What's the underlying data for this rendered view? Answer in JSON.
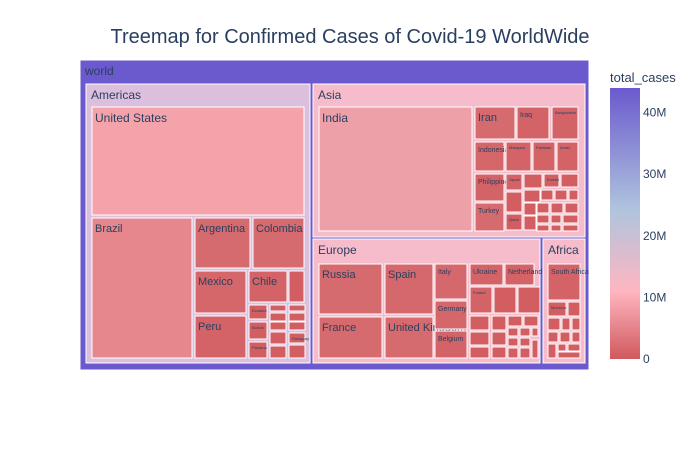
{
  "chart_data": {
    "type": "treemap",
    "title": "Treemap for Confirmed Cases of Covid-19 WorldWide",
    "root": "world",
    "colorbar": {
      "title": "total_cases",
      "ticks": [
        "0",
        "10M",
        "20M",
        "30M",
        "40M"
      ],
      "tick_values": [
        0,
        10,
        20,
        30,
        40
      ],
      "range": [
        0,
        44
      ],
      "colors": [
        "#d0595d",
        "#ffb6c1",
        "#b0c4de",
        "#6a5acd"
      ]
    },
    "root_color": "#6a5acd",
    "children": [
      {
        "name": "Americas",
        "color": "#dcbfdd",
        "children": [
          {
            "name": "United States",
            "value": 44,
            "color": "#f4a3ab"
          },
          {
            "name": "Brazil",
            "value": 21,
            "color": "#e5878c"
          },
          {
            "name": "Argentina",
            "value": 5.3,
            "color": "#d66b6f"
          },
          {
            "name": "Colombia",
            "value": 5.0,
            "color": "#d66b6f"
          },
          {
            "name": "Mexico",
            "value": 3.7,
            "color": "#d5666a"
          },
          {
            "name": "Chile",
            "value": 1.7,
            "color": "#d46367"
          },
          {
            "name": "Peru",
            "value": 2.2,
            "color": "#d46367"
          },
          {
            "name": "Ecuador",
            "value": 0.5,
            "color": "#d25e62"
          },
          {
            "name": "Bolivia",
            "value": 0.5,
            "color": "#d25e62"
          },
          {
            "name": "Panama",
            "value": 0.5,
            "color": "#d25e62"
          },
          {
            "name": "Paraguay",
            "value": 0.45,
            "color": "#d25e62"
          }
        ]
      },
      {
        "name": "Asia",
        "color": "#f6bccb",
        "children": [
          {
            "name": "India",
            "value": 34,
            "color": "#eea0a8"
          },
          {
            "name": "Iran",
            "value": 5.7,
            "color": "#d66b6f"
          },
          {
            "name": "Iraq",
            "value": 2.0,
            "color": "#d46367"
          },
          {
            "name": "Bangladesh",
            "value": 1.6,
            "color": "#d46367"
          },
          {
            "name": "Indonesia",
            "value": 4.2,
            "color": "#d5666a"
          },
          {
            "name": "Malaysia",
            "value": 2.3,
            "color": "#d46367"
          },
          {
            "name": "Pakistan",
            "value": 1.2,
            "color": "#d46367"
          },
          {
            "name": "Israel",
            "value": 1.3,
            "color": "#d46367"
          },
          {
            "name": "Philippines",
            "value": 2.6,
            "color": "#d46367"
          },
          {
            "name": "Japan",
            "value": 1.7,
            "color": "#d46367"
          },
          {
            "name": "Kuwait",
            "value": 0.4,
            "color": "#d25e62"
          },
          {
            "name": "Turkey",
            "value": 7.4,
            "color": "#d66b6f"
          },
          {
            "name": "Qatar",
            "value": 0.2,
            "color": "#d25e62"
          }
        ]
      },
      {
        "name": "Europe",
        "color": "#f6bccb",
        "children": [
          {
            "name": "Russia",
            "value": 7.7,
            "color": "#d66b6f"
          },
          {
            "name": "Spain",
            "value": 5.0,
            "color": "#d5686c"
          },
          {
            "name": "Italy",
            "value": 4.7,
            "color": "#d5686c"
          },
          {
            "name": "Ukraine",
            "value": 2.5,
            "color": "#d46367"
          },
          {
            "name": "Netherlands",
            "value": 2.0,
            "color": "#d46367"
          },
          {
            "name": "France",
            "value": 7.0,
            "color": "#d66b6f"
          },
          {
            "name": "United Kingdom",
            "value": 8.0,
            "color": "#d66b6f"
          },
          {
            "name": "Germany",
            "value": 4.2,
            "color": "#d5666a"
          },
          {
            "name": "Poland",
            "value": 2.9,
            "color": "#d46367"
          },
          {
            "name": "Belgium",
            "value": 1.2,
            "color": "#d46367"
          }
        ]
      },
      {
        "name": "Africa",
        "color": "#f6bccb",
        "children": [
          {
            "name": "South Africa",
            "value": 2.9,
            "color": "#d46367"
          },
          {
            "name": "Morocco",
            "value": 0.9,
            "color": "#d25e62"
          }
        ]
      }
    ]
  }
}
